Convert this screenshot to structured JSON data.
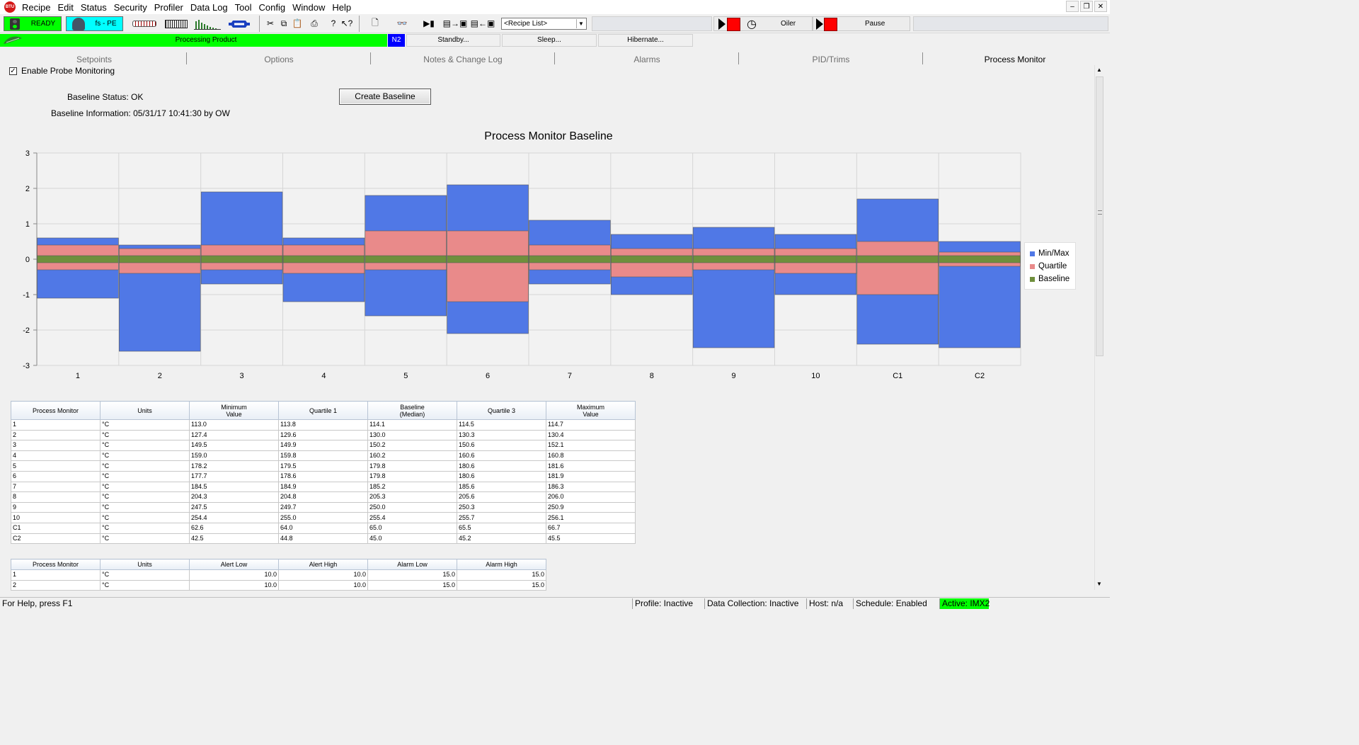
{
  "menu": {
    "items": [
      "Recipe",
      "Edit",
      "Status",
      "Security",
      "Profiler",
      "Data Log",
      "Tool",
      "Config",
      "Window",
      "Help"
    ]
  },
  "toolbar": {
    "ready_label": "READY",
    "user_label": "fs - PE",
    "recipe_select": "<Recipe List>",
    "oiler_label": "Oiler",
    "pause_label": "Pause"
  },
  "status_row": {
    "processing": "Processing Product",
    "n2": "N2",
    "standby": "Standby...",
    "sleep": "Sleep...",
    "hibernate": "Hibernate..."
  },
  "tabs": [
    "Setpoints",
    "Options",
    "Notes & Change Log",
    "Alarms",
    "PID/Trims",
    "Process Monitor"
  ],
  "monitor": {
    "enable_probe_label": "Enable Probe Monitoring",
    "enable_probe_checked": true,
    "baseline_status": "Baseline Status: OK",
    "baseline_info": "Baseline Information: 05/31/17 10:41:30 by OW",
    "create_baseline_label": "Create Baseline"
  },
  "chart_data": {
    "type": "bar",
    "title": "Process Monitor Baseline",
    "categories": [
      "1",
      "2",
      "3",
      "4",
      "5",
      "6",
      "7",
      "8",
      "9",
      "10",
      "C1",
      "C2"
    ],
    "ylim": [
      -3,
      3
    ],
    "yticks": [
      "3",
      "2",
      "1",
      "0",
      "-1",
      "-2",
      "-3"
    ],
    "grid": true,
    "legend_position": "right",
    "series": [
      {
        "name": "Min/Max",
        "color": "#5078e6",
        "low": [
          -1.1,
          -2.6,
          -0.7,
          -1.2,
          -1.6,
          -2.1,
          -0.7,
          -1.0,
          -2.5,
          -1.0,
          -2.4,
          -2.5
        ],
        "high": [
          0.6,
          0.4,
          1.9,
          0.6,
          1.8,
          2.1,
          1.1,
          0.7,
          0.9,
          0.7,
          1.7,
          0.5
        ]
      },
      {
        "name": "Quartile",
        "color": "#e98a8a",
        "low": [
          -0.3,
          -0.4,
          -0.3,
          -0.4,
          -0.3,
          -1.2,
          -0.3,
          -0.5,
          -0.3,
          -0.4,
          -1.0,
          -0.2
        ],
        "high": [
          0.4,
          0.3,
          0.4,
          0.4,
          0.8,
          0.8,
          0.4,
          0.3,
          0.3,
          0.3,
          0.5,
          0.2
        ]
      },
      {
        "name": "Baseline",
        "color": "#6f8f3c",
        "low": [
          -0.1,
          -0.1,
          -0.1,
          -0.1,
          -0.1,
          -0.1,
          -0.1,
          -0.1,
          -0.1,
          -0.1,
          -0.1,
          -0.1
        ],
        "high": [
          0.1,
          0.1,
          0.1,
          0.1,
          0.1,
          0.1,
          0.1,
          0.1,
          0.1,
          0.1,
          0.1,
          0.1
        ]
      }
    ]
  },
  "table1": {
    "headers": [
      "Process Monitor",
      "Units",
      "Minimum\nValue",
      "Quartile 1",
      "Baseline\n(Median)",
      "Quartile 3",
      "Maximum\nValue"
    ],
    "rows": [
      [
        "1",
        "°C",
        "113.0",
        "113.8",
        "114.1",
        "114.5",
        "114.7"
      ],
      [
        "2",
        "°C",
        "127.4",
        "129.6",
        "130.0",
        "130.3",
        "130.4"
      ],
      [
        "3",
        "°C",
        "149.5",
        "149.9",
        "150.2",
        "150.6",
        "152.1"
      ],
      [
        "4",
        "°C",
        "159.0",
        "159.8",
        "160.2",
        "160.6",
        "160.8"
      ],
      [
        "5",
        "°C",
        "178.2",
        "179.5",
        "179.8",
        "180.6",
        "181.6"
      ],
      [
        "6",
        "°C",
        "177.7",
        "178.6",
        "179.8",
        "180.6",
        "181.9"
      ],
      [
        "7",
        "°C",
        "184.5",
        "184.9",
        "185.2",
        "185.6",
        "186.3"
      ],
      [
        "8",
        "°C",
        "204.3",
        "204.8",
        "205.3",
        "205.6",
        "206.0"
      ],
      [
        "9",
        "°C",
        "247.5",
        "249.7",
        "250.0",
        "250.3",
        "250.9"
      ],
      [
        "10",
        "°C",
        "254.4",
        "255.0",
        "255.4",
        "255.7",
        "256.1"
      ],
      [
        "C1",
        "°C",
        "62.6",
        "64.0",
        "65.0",
        "65.5",
        "66.7"
      ],
      [
        "C2",
        "°C",
        "42.5",
        "44.8",
        "45.0",
        "45.2",
        "45.5"
      ]
    ]
  },
  "table2": {
    "headers": [
      "Process Monitor",
      "Units",
      "Alert Low",
      "Alert High",
      "Alarm Low",
      "Alarm High"
    ],
    "rows": [
      [
        "1",
        "°C",
        "10.0",
        "10.0",
        "15.0",
        "15.0"
      ],
      [
        "2",
        "°C",
        "10.0",
        "10.0",
        "15.0",
        "15.0"
      ]
    ]
  },
  "statusbar": {
    "help": "For Help, press F1",
    "profile": "Profile: Inactive",
    "data_collection": "Data Collection: Inactive",
    "host": "Host: n/a",
    "schedule": "Schedule: Enabled",
    "active": "Active: IMX2"
  },
  "colors": {
    "ready_green": "#00ff00",
    "user_cyan": "#00ffff",
    "n2_blue": "#0000ff",
    "stop_red": "#ff0000"
  }
}
